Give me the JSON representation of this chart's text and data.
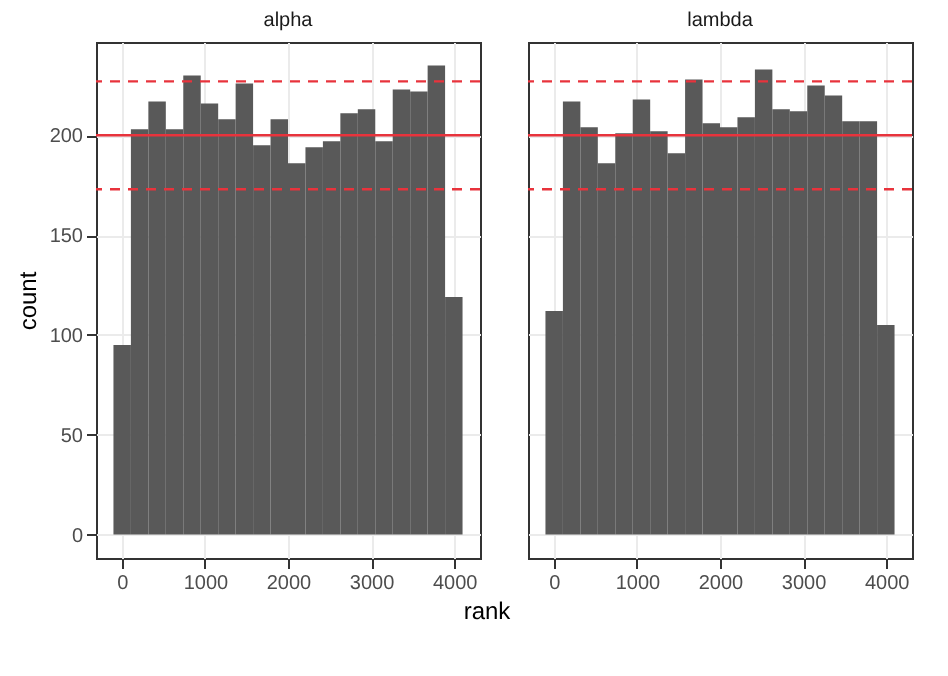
{
  "chart_data": [
    {
      "type": "histogram",
      "title": "alpha",
      "ylabel": "count",
      "xlabel": "rank",
      "bins": [
        -100,
        110,
        320,
        530,
        740,
        950,
        1160,
        1370,
        1580,
        1790,
        2000,
        2210,
        2420,
        2630,
        2840,
        3050,
        3260,
        3470,
        3680,
        3890,
        4100
      ],
      "values": [
        95,
        203,
        217,
        203,
        230,
        216,
        208,
        226,
        195,
        208,
        186,
        194,
        197,
        211,
        213,
        197,
        223,
        222,
        235,
        119
      ],
      "color": "#595959",
      "xlim": [
        -310,
        4310
      ],
      "ylim": [
        -11.75,
        246.75
      ],
      "xticks": [
        0,
        1000,
        2000,
        3000,
        4000
      ],
      "yticks": [
        0,
        50,
        100,
        150,
        200
      ],
      "grid": true,
      "ref_lines": [
        {
          "axis": "y",
          "value": 200,
          "color": "#e8333c",
          "line_style": "solid"
        },
        {
          "axis": "y",
          "value": 227,
          "color": "#e8333c",
          "line_style": "dashed"
        },
        {
          "axis": "y",
          "value": 173,
          "color": "#e8333c",
          "line_style": "dashed"
        }
      ]
    },
    {
      "type": "histogram",
      "title": "lambda",
      "bins": [
        -100,
        110,
        320,
        530,
        740,
        950,
        1160,
        1370,
        1580,
        1790,
        2000,
        2210,
        2420,
        2630,
        2840,
        3050,
        3260,
        3470,
        3680,
        3890,
        4100
      ],
      "values": [
        112,
        217,
        204,
        186,
        201,
        218,
        202,
        191,
        228,
        206,
        204,
        209,
        233,
        213,
        212,
        225,
        220,
        207,
        207,
        105
      ],
      "color": "#595959",
      "xlim": [
        -310,
        4310
      ],
      "ylim": [
        -11.75,
        246.75
      ],
      "xticks": [
        0,
        1000,
        2000,
        3000,
        4000
      ],
      "yticks": [
        0,
        50,
        100,
        150,
        200
      ],
      "grid": true,
      "tick_labels": "x",
      "ref_lines": [
        {
          "axis": "y",
          "value": 200,
          "color": "#e8333c",
          "line_style": "solid"
        },
        {
          "axis": "y",
          "value": 227,
          "color": "#e8333c",
          "line_style": "dashed"
        },
        {
          "axis": "y",
          "value": 173,
          "color": "#e8333c",
          "line_style": "dashed"
        }
      ]
    }
  ]
}
